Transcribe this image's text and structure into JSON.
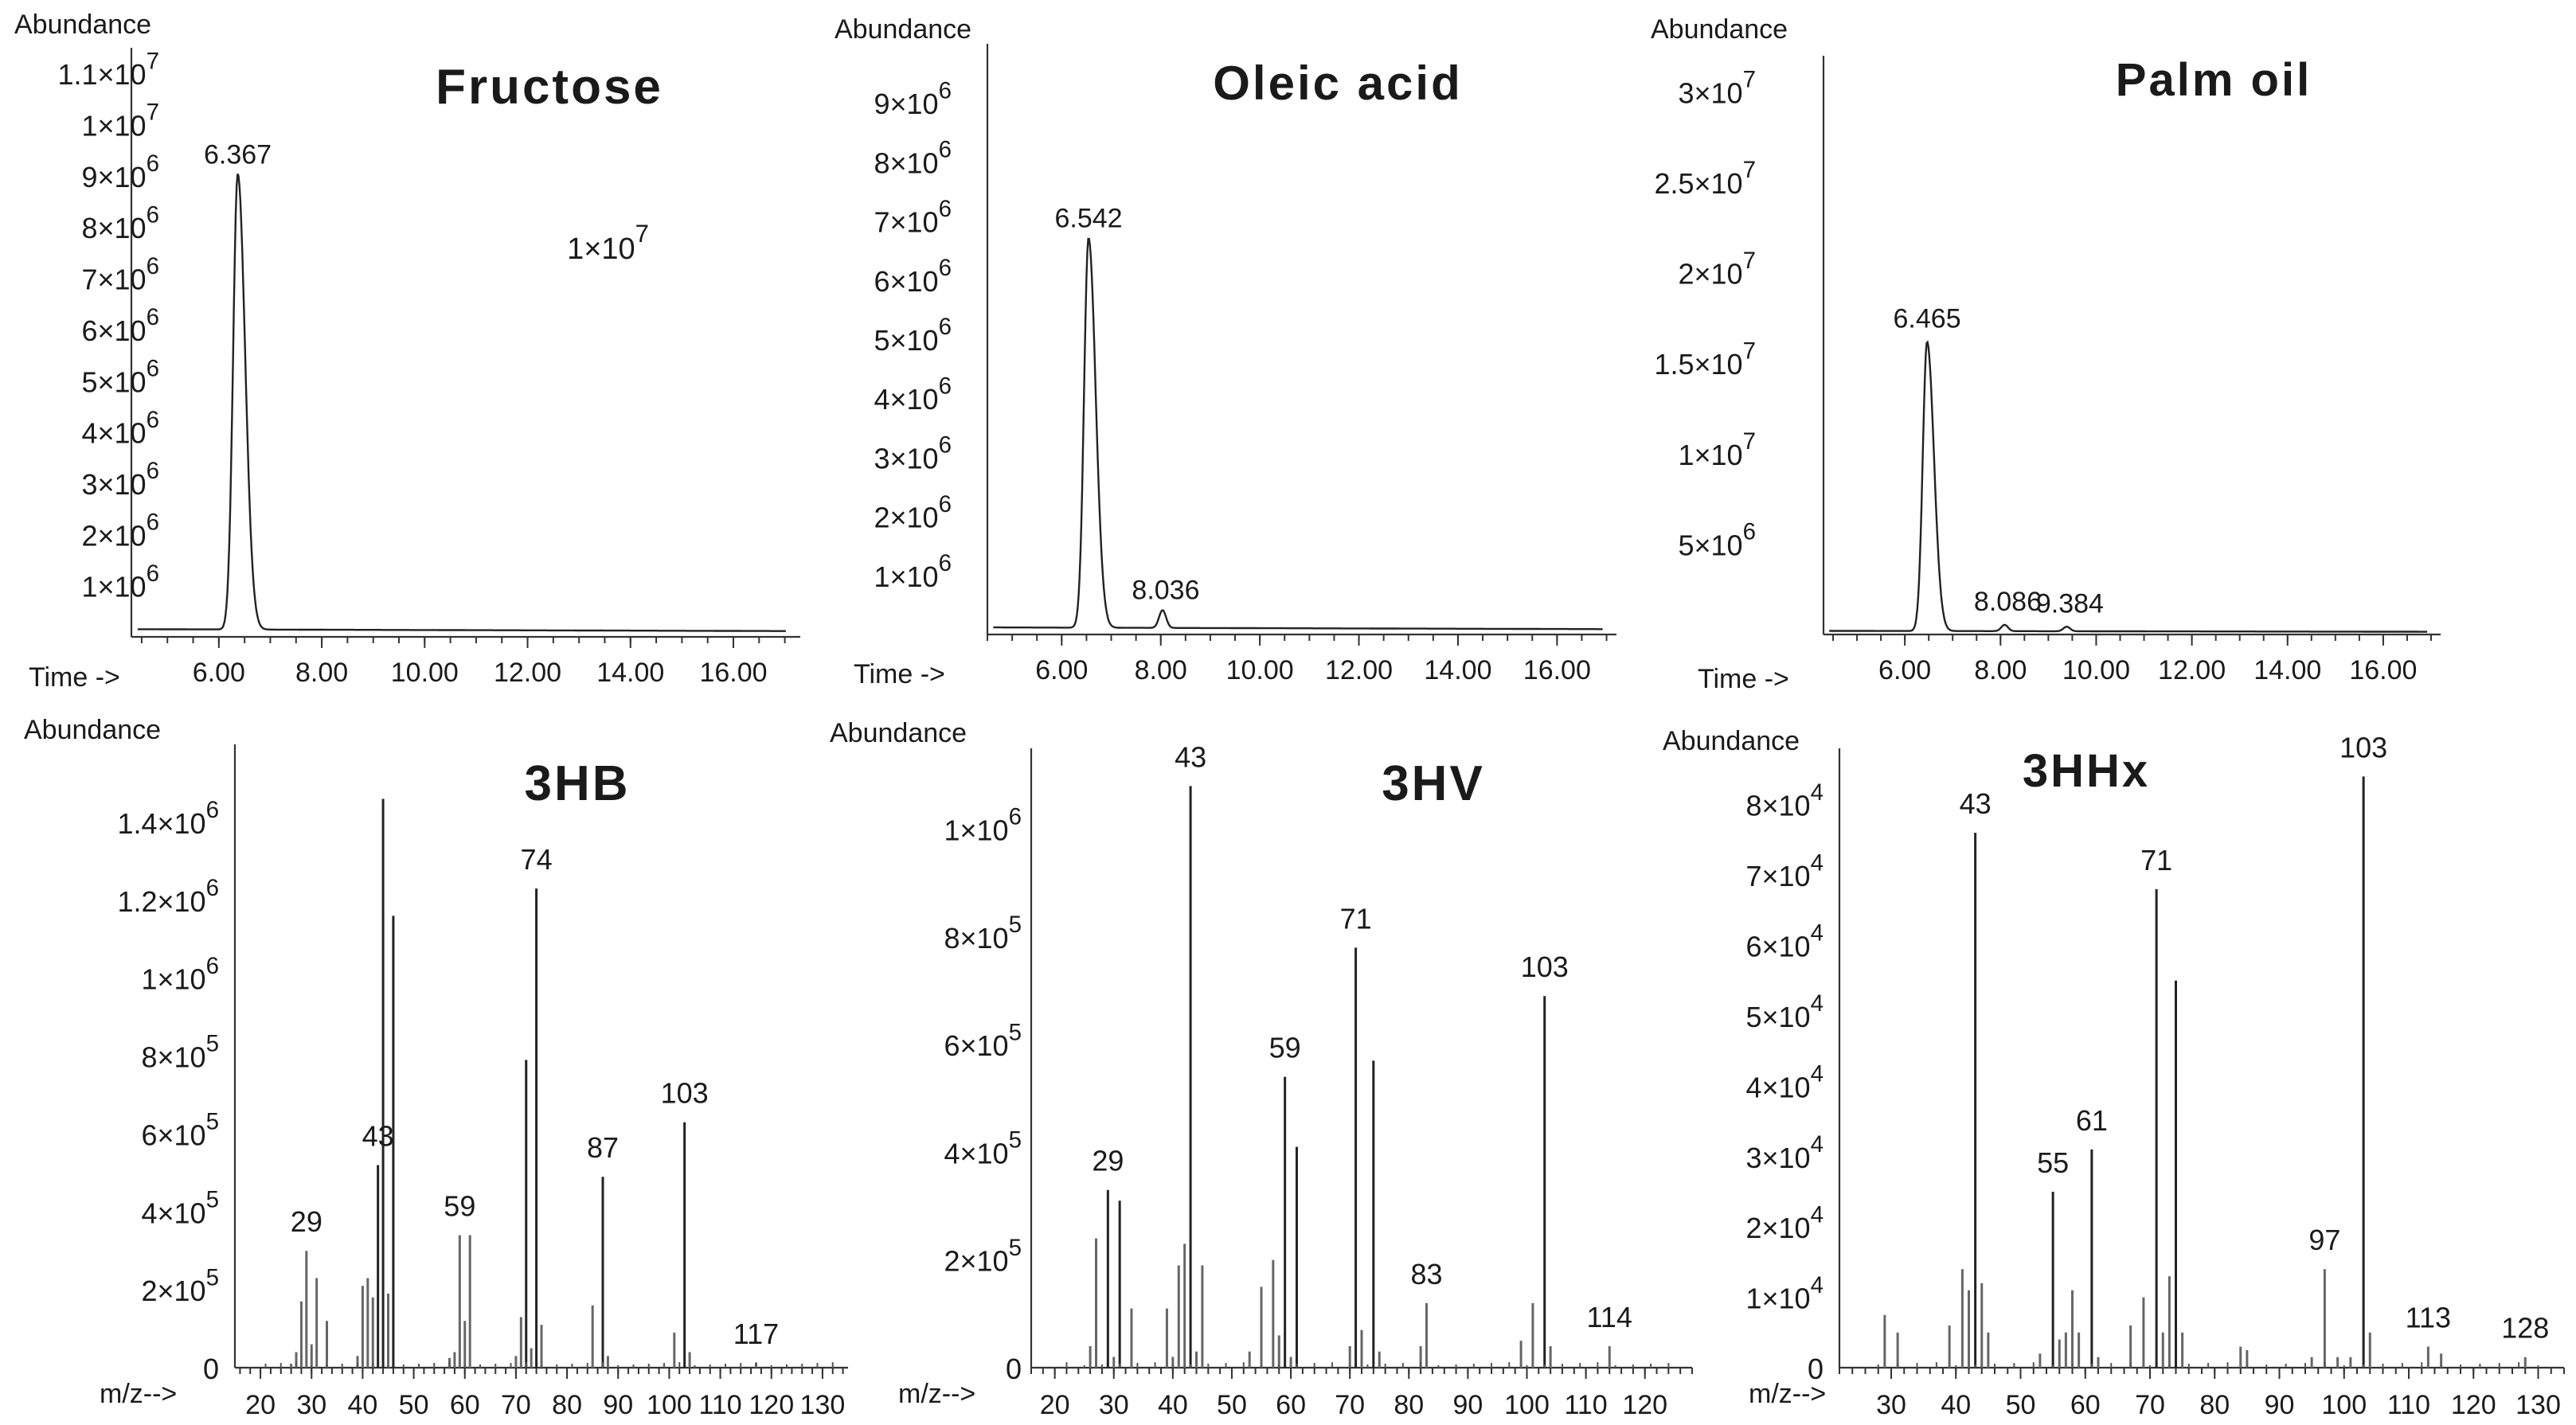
{
  "chart_data": [
    {
      "type": "line",
      "title": "Fructose",
      "ylabel": "Abundance",
      "xlabel": "Time ->",
      "xlim": [
        4.3,
        17.3
      ],
      "xticks": [
        "6.00",
        "8.00",
        "10.00",
        "12.00",
        "14.00",
        "16.00"
      ],
      "ylim": [
        0,
        11500000
      ],
      "yticks": [
        {
          "value": 11000000,
          "mant": "1.1",
          "exp": "7"
        },
        {
          "value": 10000000,
          "mant": "1",
          "exp": "7"
        },
        {
          "value": 9000000,
          "mant": "9",
          "exp": "6"
        },
        {
          "value": 8000000,
          "mant": "8",
          "exp": "6"
        },
        {
          "value": 7000000,
          "mant": "7",
          "exp": "6"
        },
        {
          "value": 6000000,
          "mant": "6",
          "exp": "6"
        },
        {
          "value": 5000000,
          "mant": "5",
          "exp": "6"
        },
        {
          "value": 4000000,
          "mant": "4",
          "exp": "6"
        },
        {
          "value": 3000000,
          "mant": "3",
          "exp": "6"
        },
        {
          "value": 2000000,
          "mant": "2",
          "exp": "6"
        },
        {
          "value": 1000000,
          "mant": "1",
          "exp": "6"
        }
      ],
      "peaks": [
        {
          "x": 6.367,
          "y": 8900000,
          "label": "6.367"
        }
      ],
      "baseline": 150000,
      "annotation": {
        "mant": "1",
        "exp": "7"
      }
    },
    {
      "type": "line",
      "title": "Oleic acid",
      "ylabel": "Abundance",
      "xlabel": "Time ->",
      "xlim": [
        4.5,
        17.2
      ],
      "xticks": [
        "6.00",
        "8.00",
        "10.00",
        "12.00",
        "14.00",
        "16.00"
      ],
      "ylim": [
        0,
        10000000
      ],
      "yticks": [
        {
          "value": 9000000,
          "mant": "9",
          "exp": "6"
        },
        {
          "value": 8000000,
          "mant": "8",
          "exp": "6"
        },
        {
          "value": 7000000,
          "mant": "7",
          "exp": "6"
        },
        {
          "value": 6000000,
          "mant": "6",
          "exp": "6"
        },
        {
          "value": 5000000,
          "mant": "5",
          "exp": "6"
        },
        {
          "value": 4000000,
          "mant": "4",
          "exp": "6"
        },
        {
          "value": 3000000,
          "mant": "3",
          "exp": "6"
        },
        {
          "value": 2000000,
          "mant": "2",
          "exp": "6"
        },
        {
          "value": 1000000,
          "mant": "1",
          "exp": "6"
        }
      ],
      "peaks": [
        {
          "x": 6.542,
          "y": 6600000,
          "label": "6.542"
        },
        {
          "x": 8.036,
          "y": 300000,
          "label": "8.036"
        }
      ],
      "baseline": 120000
    },
    {
      "type": "line",
      "title": "Palm oil",
      "ylabel": "Abundance",
      "xlabel": "Time ->",
      "xlim": [
        4.3,
        17.2
      ],
      "xticks": [
        "6.00",
        "8.00",
        "10.00",
        "12.00",
        "14.00",
        "16.00"
      ],
      "ylim": [
        0,
        32000000
      ],
      "yticks": [
        {
          "value": 30000000,
          "mant": "3",
          "exp": "7"
        },
        {
          "value": 25000000,
          "mant": "2.5",
          "exp": "7"
        },
        {
          "value": 20000000,
          "mant": "2",
          "exp": "7"
        },
        {
          "value": 15000000,
          "mant": "1.5",
          "exp": "7"
        },
        {
          "value": 10000000,
          "mant": "1",
          "exp": "7"
        },
        {
          "value": 5000000,
          "mant": "5",
          "exp": "6"
        }
      ],
      "peaks": [
        {
          "x": 6.465,
          "y": 16000000,
          "label": "6.465"
        },
        {
          "x": 8.086,
          "y": 350000,
          "label": "8.086"
        },
        {
          "x": 9.384,
          "y": 250000,
          "label": "9.384"
        }
      ],
      "baseline": 200000
    },
    {
      "type": "bar",
      "title": "3HB",
      "ylabel": "Abundance",
      "xlabel": "m/z-->",
      "xlim": [
        15,
        135
      ],
      "xticks": [
        20,
        30,
        40,
        50,
        60,
        70,
        80,
        90,
        100,
        110,
        120,
        130
      ],
      "ylim": [
        0,
        1600000
      ],
      "yticks": [
        {
          "value": 1400000,
          "mant": "1.4",
          "exp": "6"
        },
        {
          "value": 1200000,
          "mant": "1.2",
          "exp": "6"
        },
        {
          "value": 1000000,
          "mant": "1",
          "exp": "6"
        },
        {
          "value": 800000,
          "mant": "8",
          "exp": "5"
        },
        {
          "value": 600000,
          "mant": "6",
          "exp": "5"
        },
        {
          "value": 400000,
          "mant": "4",
          "exp": "5"
        },
        {
          "value": 200000,
          "mant": "2",
          "exp": "5"
        },
        {
          "value": 0,
          "mant": "0",
          "exp": ""
        }
      ],
      "bars": [
        [
          26,
          10000
        ],
        [
          27,
          40000
        ],
        [
          28,
          170000
        ],
        [
          29,
          300000
        ],
        [
          30,
          60000
        ],
        [
          31,
          230000
        ],
        [
          33,
          120000
        ],
        [
          39,
          30000
        ],
        [
          40,
          210000
        ],
        [
          41,
          230000
        ],
        [
          42,
          180000
        ],
        [
          43,
          520000
        ],
        [
          44,
          1460000
        ],
        [
          45,
          190000
        ],
        [
          46,
          1160000
        ],
        [
          57,
          25000
        ],
        [
          58,
          40000
        ],
        [
          59,
          340000
        ],
        [
          60,
          120000
        ],
        [
          61,
          340000
        ],
        [
          70,
          30000
        ],
        [
          71,
          130000
        ],
        [
          72,
          790000
        ],
        [
          73,
          50000
        ],
        [
          74,
          1230000
        ],
        [
          75,
          110000
        ],
        [
          85,
          160000
        ],
        [
          87,
          490000
        ],
        [
          88,
          30000
        ],
        [
          101,
          90000
        ],
        [
          103,
          630000
        ],
        [
          104,
          40000
        ],
        [
          117,
          12000
        ]
      ],
      "peak_labels": [
        {
          "x": 29,
          "label": "29"
        },
        {
          "x": 43,
          "label": "43"
        },
        {
          "x": 59,
          "label": "59"
        },
        {
          "x": 74,
          "label": "74"
        },
        {
          "x": 87,
          "label": "87"
        },
        {
          "x": 103,
          "label": "103"
        },
        {
          "x": 117,
          "label": "117"
        }
      ]
    },
    {
      "type": "bar",
      "title": "3HV",
      "ylabel": "Abundance",
      "xlabel": "m/z-->",
      "xlim": [
        16,
        128
      ],
      "xticks": [
        20,
        30,
        40,
        50,
        60,
        70,
        80,
        90,
        100,
        110,
        120
      ],
      "ylim": [
        0,
        1150000
      ],
      "yticks": [
        {
          "value": 1000000,
          "mant": "1",
          "exp": "6"
        },
        {
          "value": 800000,
          "mant": "8",
          "exp": "5"
        },
        {
          "value": 600000,
          "mant": "6",
          "exp": "5"
        },
        {
          "value": 400000,
          "mant": "4",
          "exp": "5"
        },
        {
          "value": 200000,
          "mant": "2",
          "exp": "5"
        },
        {
          "value": 0,
          "mant": "0",
          "exp": ""
        }
      ],
      "bars": [
        [
          26,
          40000
        ],
        [
          27,
          240000
        ],
        [
          29,
          330000
        ],
        [
          30,
          20000
        ],
        [
          31,
          310000
        ],
        [
          33,
          110000
        ],
        [
          39,
          110000
        ],
        [
          40,
          20000
        ],
        [
          41,
          190000
        ],
        [
          42,
          230000
        ],
        [
          43,
          1080000
        ],
        [
          44,
          30000
        ],
        [
          45,
          190000
        ],
        [
          53,
          30000
        ],
        [
          55,
          150000
        ],
        [
          57,
          200000
        ],
        [
          58,
          60000
        ],
        [
          59,
          540000
        ],
        [
          60,
          20000
        ],
        [
          61,
          410000
        ],
        [
          70,
          40000
        ],
        [
          71,
          780000
        ],
        [
          72,
          70000
        ],
        [
          74,
          570000
        ],
        [
          75,
          30000
        ],
        [
          82,
          40000
        ],
        [
          83,
          120000
        ],
        [
          99,
          50000
        ],
        [
          101,
          120000
        ],
        [
          103,
          690000
        ],
        [
          104,
          40000
        ],
        [
          114,
          40000
        ]
      ],
      "peak_labels": [
        {
          "x": 29,
          "label": "29"
        },
        {
          "x": 43,
          "label": "43"
        },
        {
          "x": 59,
          "label": "59"
        },
        {
          "x": 71,
          "label": "71"
        },
        {
          "x": 83,
          "label": "83"
        },
        {
          "x": 103,
          "label": "103"
        },
        {
          "x": 114,
          "label": "114"
        }
      ]
    },
    {
      "type": "bar",
      "title": "3HHx",
      "ylabel": "Abundance",
      "xlabel": "m/z-->",
      "xlim": [
        22,
        134
      ],
      "xticks": [
        30,
        40,
        50,
        60,
        70,
        80,
        90,
        100,
        110,
        120,
        130
      ],
      "ylim": [
        0,
        88000
      ],
      "yticks": [
        {
          "value": 80000,
          "mant": "8",
          "exp": "4"
        },
        {
          "value": 70000,
          "mant": "7",
          "exp": "4"
        },
        {
          "value": 60000,
          "mant": "6",
          "exp": "4"
        },
        {
          "value": 50000,
          "mant": "5",
          "exp": "4"
        },
        {
          "value": 40000,
          "mant": "4",
          "exp": "4"
        },
        {
          "value": 30000,
          "mant": "3",
          "exp": "4"
        },
        {
          "value": 20000,
          "mant": "2",
          "exp": "4"
        },
        {
          "value": 10000,
          "mant": "1",
          "exp": "4"
        },
        {
          "value": 0,
          "mant": "0",
          "exp": ""
        }
      ],
      "bars": [
        [
          29,
          7500
        ],
        [
          31,
          5000
        ],
        [
          39,
          6000
        ],
        [
          41,
          14000
        ],
        [
          42,
          11000
        ],
        [
          43,
          76000
        ],
        [
          44,
          12000
        ],
        [
          45,
          5000
        ],
        [
          53,
          2000
        ],
        [
          55,
          25000
        ],
        [
          56,
          4000
        ],
        [
          57,
          5000
        ],
        [
          58,
          11000
        ],
        [
          59,
          5000
        ],
        [
          61,
          31000
        ],
        [
          62,
          1500
        ],
        [
          67,
          6000
        ],
        [
          69,
          10000
        ],
        [
          71,
          68000
        ],
        [
          72,
          5000
        ],
        [
          73,
          13000
        ],
        [
          74,
          55000
        ],
        [
          75,
          5000
        ],
        [
          84,
          3000
        ],
        [
          85,
          2500
        ],
        [
          95,
          1500
        ],
        [
          97,
          14000
        ],
        [
          99,
          1500
        ],
        [
          101,
          1500
        ],
        [
          103,
          84000
        ],
        [
          104,
          5000
        ],
        [
          113,
          3000
        ],
        [
          115,
          2000
        ],
        [
          128,
          1500
        ]
      ],
      "peak_labels": [
        {
          "x": 43,
          "label": "43"
        },
        {
          "x": 55,
          "label": "55"
        },
        {
          "x": 61,
          "label": "61"
        },
        {
          "x": 71,
          "label": "71"
        },
        {
          "x": 97,
          "label": "97"
        },
        {
          "x": 103,
          "label": "103"
        },
        {
          "x": 113,
          "label": "113"
        },
        {
          "x": 128,
          "label": "128"
        }
      ]
    }
  ]
}
